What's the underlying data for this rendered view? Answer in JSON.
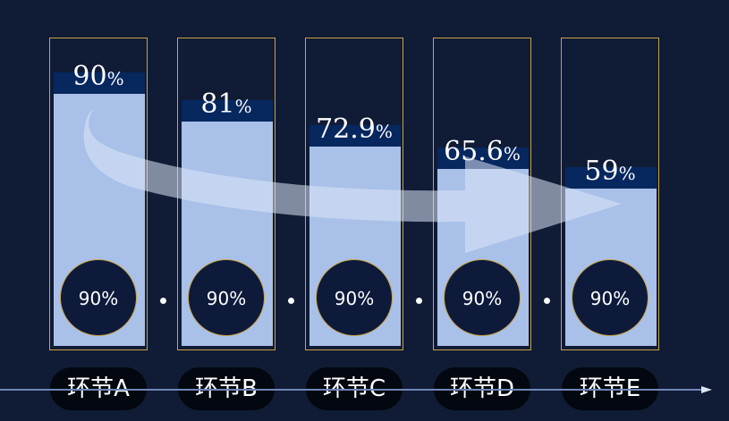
{
  "chart_data": {
    "type": "bar",
    "categories": [
      "环节A",
      "环节B",
      "环节C",
      "环节D",
      "环节E"
    ],
    "values": [
      90,
      81,
      72.9,
      65.6,
      59
    ],
    "value_unit": "%",
    "stage_rates": [
      "90%",
      "90%",
      "90%",
      "90%",
      "90%"
    ],
    "ylim": [
      0,
      100
    ],
    "title": "",
    "xlabel": "",
    "ylabel": "",
    "grid": false,
    "legend": "none"
  },
  "colors": {
    "background": "#101b35",
    "bar_fill": "#a9c1e8",
    "bar_head": "#07275f",
    "frame_border": "#c9a24a",
    "circle_fill": "#0d1a3a",
    "pill_fill": "#03070f",
    "arrow": "#dce6f7",
    "timeline": "#6f86b8"
  },
  "icons": {
    "flow_arrow": "curved-arrow-icon",
    "timeline_arrow": "arrow-right-icon"
  }
}
